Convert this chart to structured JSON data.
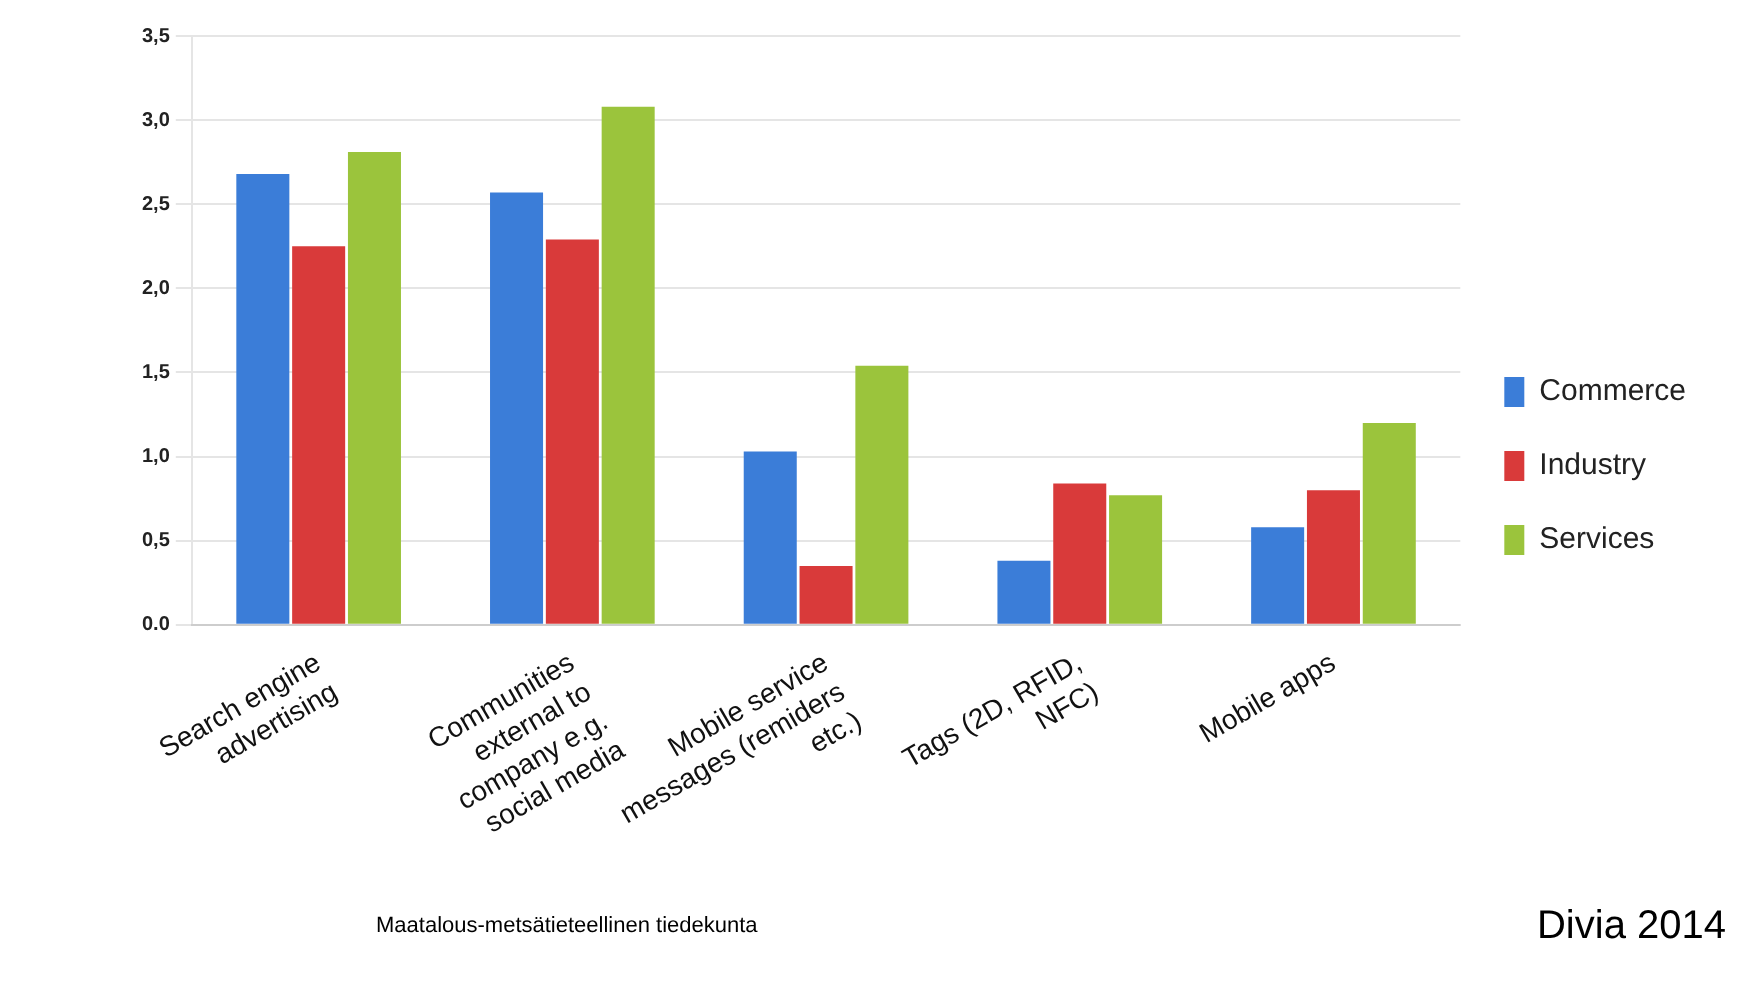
{
  "chart_data": {
    "type": "bar",
    "categories": [
      "Search engine advertising",
      "Communities external to company e.g. social media",
      "Mobile service messages (remiders etc.)",
      "Tags (2D, RFID, NFC)",
      "Mobile apps"
    ],
    "series": [
      {
        "name": "Commerce",
        "color": "#3b7dd8",
        "values": [
          2.68,
          2.57,
          1.03,
          0.38,
          0.58
        ]
      },
      {
        "name": "Industry",
        "color": "#d93a3a",
        "values": [
          2.25,
          2.29,
          0.35,
          0.84,
          0.8
        ]
      },
      {
        "name": "Services",
        "color": "#9bc43c",
        "values": [
          2.81,
          3.08,
          1.54,
          0.77,
          1.2
        ]
      }
    ],
    "ylim": [
      0,
      3.5
    ],
    "yticks": [
      {
        "value": 0,
        "label": "0.0"
      },
      {
        "value": 0.5,
        "label": "0,5"
      },
      {
        "value": 1,
        "label": "1,0"
      },
      {
        "value": 1.5,
        "label": "1,5"
      },
      {
        "value": 2,
        "label": "2,0"
      },
      {
        "value": 2.5,
        "label": "2,5"
      },
      {
        "value": 3,
        "label": "3,0"
      },
      {
        "value": 3.5,
        "label": "3,5"
      }
    ],
    "grid": "y",
    "legend": "right",
    "annotations": [
      "Maatalous-metsätieteellinen tiedekunta",
      "Divia 2014"
    ]
  }
}
